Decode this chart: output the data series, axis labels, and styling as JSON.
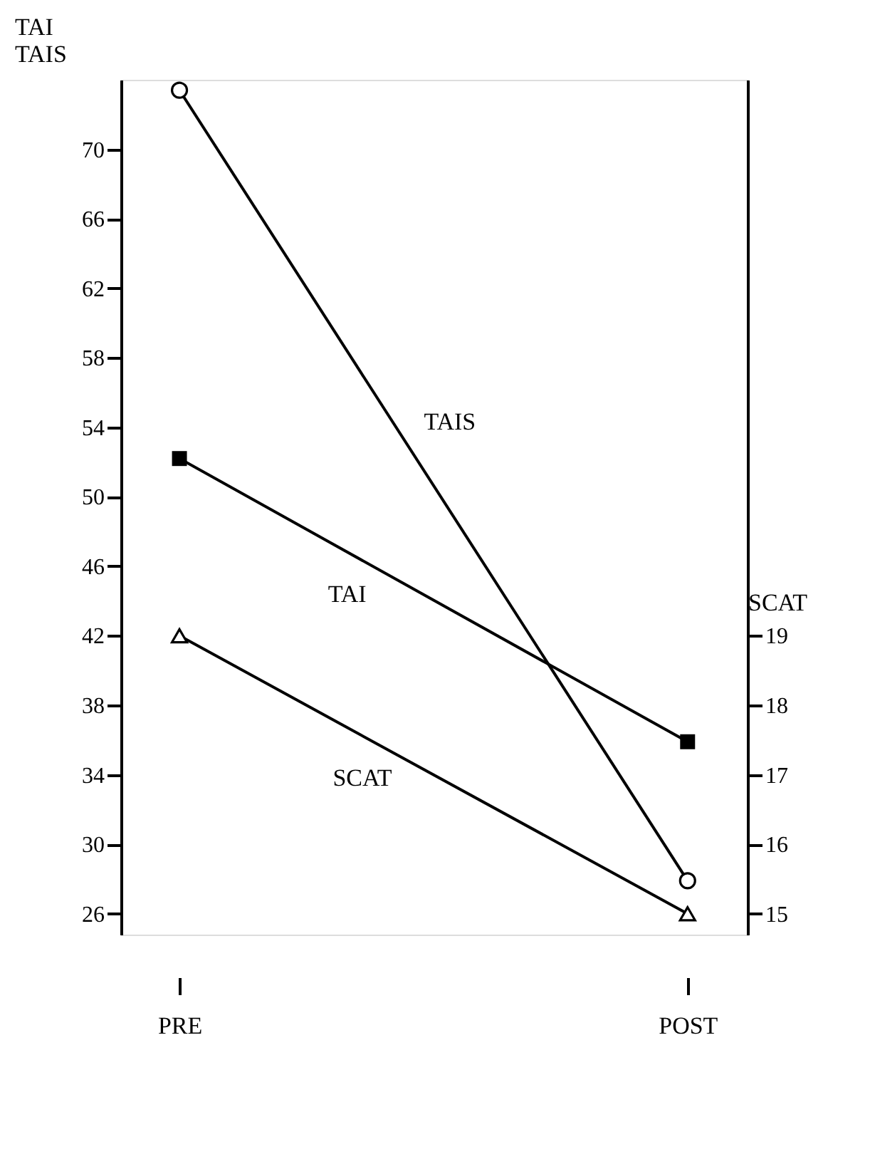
{
  "chart_data": {
    "type": "line",
    "ylabel": "TAI\nTAIS",
    "y2label": "SCAT",
    "categories": [
      "PRE",
      "POST"
    ],
    "series": [
      {
        "name": "TAIS",
        "color": "#000000",
        "marker": "circle",
        "values": [
          73.4,
          27.9
        ]
      },
      {
        "name": "TAI",
        "color": "#000000",
        "marker": "square",
        "values": [
          52.2,
          35.9
        ]
      },
      {
        "name": "SCAT",
        "color": "#000000",
        "marker": "triangle",
        "axis": "y2",
        "values": [
          19,
          15
        ]
      }
    ],
    "ylim": [
      24.8,
      74
    ],
    "yticks": [
      26,
      30,
      34,
      38,
      42,
      46,
      50,
      54,
      58,
      62,
      66,
      70
    ],
    "y2lim": [
      14.7,
      27
    ],
    "y2ticks": [
      15,
      16,
      17,
      18,
      19
    ],
    "grid": false,
    "line_style": "solid"
  }
}
